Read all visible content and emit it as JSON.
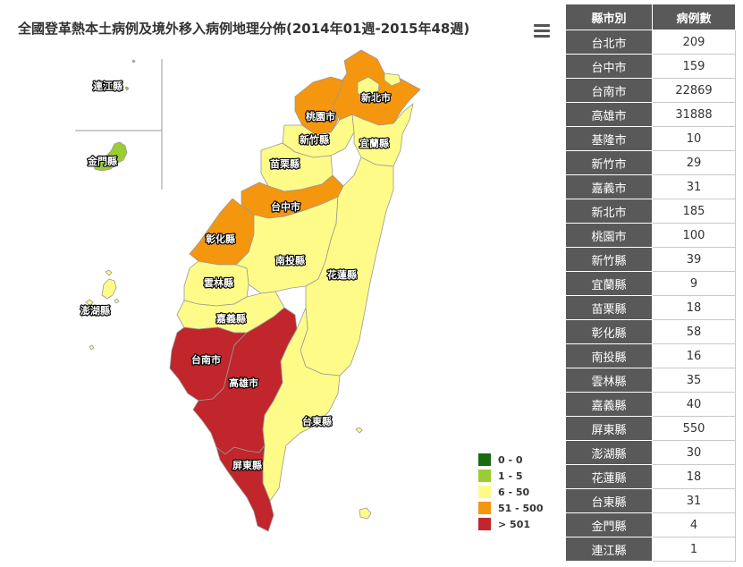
{
  "title": "全國登革熱本土病例及境外移入病例地理分佈(2014年01週-2015年48週)",
  "menu_icon": "hamburger-menu-icon",
  "colors": {
    "c0": "#1a6b0f",
    "c1": "#9acd32",
    "c2": "#fffb88",
    "c3": "#f5960f",
    "c4": "#c0262b",
    "border": "#999999"
  },
  "legend": [
    {
      "label": "0 - 0",
      "color": "#1a6b0f"
    },
    {
      "label": "1 - 5",
      "color": "#9acd32"
    },
    {
      "label": "6 - 50",
      "color": "#fffb88"
    },
    {
      "label": "51 - 500",
      "color": "#f5960f"
    },
    {
      "label": "> 501",
      "color": "#c0262b"
    }
  ],
  "table": {
    "headers": [
      "縣市別",
      "病例數"
    ],
    "rows": [
      {
        "name": "台北市",
        "value": "209"
      },
      {
        "name": "台中市",
        "value": "159"
      },
      {
        "name": "台南市",
        "value": "22869"
      },
      {
        "name": "高雄市",
        "value": "31888"
      },
      {
        "name": "基隆市",
        "value": "10"
      },
      {
        "name": "新竹市",
        "value": "29"
      },
      {
        "name": "嘉義市",
        "value": "31"
      },
      {
        "name": "新北市",
        "value": "185"
      },
      {
        "name": "桃園市",
        "value": "100"
      },
      {
        "name": "新竹縣",
        "value": "39"
      },
      {
        "name": "宜蘭縣",
        "value": "9"
      },
      {
        "name": "苗栗縣",
        "value": "18"
      },
      {
        "name": "彰化縣",
        "value": "58"
      },
      {
        "name": "南投縣",
        "value": "16"
      },
      {
        "name": "雲林縣",
        "value": "35"
      },
      {
        "name": "嘉義縣",
        "value": "40"
      },
      {
        "name": "屏東縣",
        "value": "550"
      },
      {
        "name": "澎湖縣",
        "value": "30"
      },
      {
        "name": "花蓮縣",
        "value": "18"
      },
      {
        "name": "台東縣",
        "value": "31"
      },
      {
        "name": "金門縣",
        "value": "4"
      },
      {
        "name": "連江縣",
        "value": "1"
      }
    ]
  },
  "map_labels": {
    "lienchiang": "連江縣",
    "kinmen": "金門縣",
    "penghu": "澎湖縣",
    "newtaipei": "新北市",
    "taoyuan": "桃園市",
    "hsinchu": "新竹縣",
    "yilan": "宜蘭縣",
    "miaoli": "苗栗縣",
    "taichung": "台中市",
    "changhua": "彰化縣",
    "nantou": "南投縣",
    "hualien": "花蓮縣",
    "yunlin": "雲林縣",
    "chiayi": "嘉義縣",
    "tainan": "台南市",
    "kaohsiung": "高雄市",
    "taitung": "台東縣",
    "pingtung": "屏東縣"
  }
}
